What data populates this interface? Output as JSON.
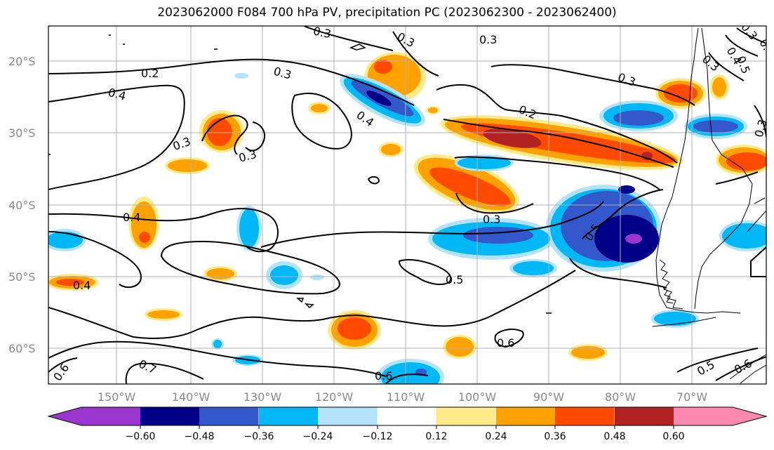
{
  "title": "2023062000 F084 700 hPa PV, precipitation PC (2023062300 - 2023062400)",
  "lat_labels": [
    "20°S",
    "30°S",
    "40°S",
    "50°S",
    "60°S"
  ],
  "lon_labels": [
    "150°W",
    "140°W",
    "130°W",
    "120°W",
    "110°W",
    "100°W",
    "90°W",
    "80°W",
    "70°W"
  ],
  "colorbar": {
    "ticks": [
      "−0.60",
      "−0.48",
      "−0.36",
      "−0.24",
      "−0.12",
      "0.12",
      "0.24",
      "0.36",
      "0.48",
      "0.60"
    ],
    "colors": [
      "#9a35d0",
      "#000088",
      "#3358cc",
      "#00b8f5",
      "#b3e3fa",
      "#ffffff",
      "#ffea8a",
      "#ffa200",
      "#ff4a00",
      "#b22222",
      "#ff88b0"
    ]
  },
  "pv_contour_labels": [
    "0.2",
    "0.2",
    "0.3",
    "0.3",
    "0.3",
    "0.3",
    "0.3",
    "0.3",
    "0.3",
    "0.3",
    "0.3",
    "0.3",
    "0.3",
    "0.4",
    "0.4",
    "0.4",
    "0.4",
    "0.4",
    "0.5",
    "0.5",
    "0.5",
    "0.5",
    "0.6",
    "0.6",
    "0.6",
    "0.6",
    "0.7",
    "0.4"
  ]
}
